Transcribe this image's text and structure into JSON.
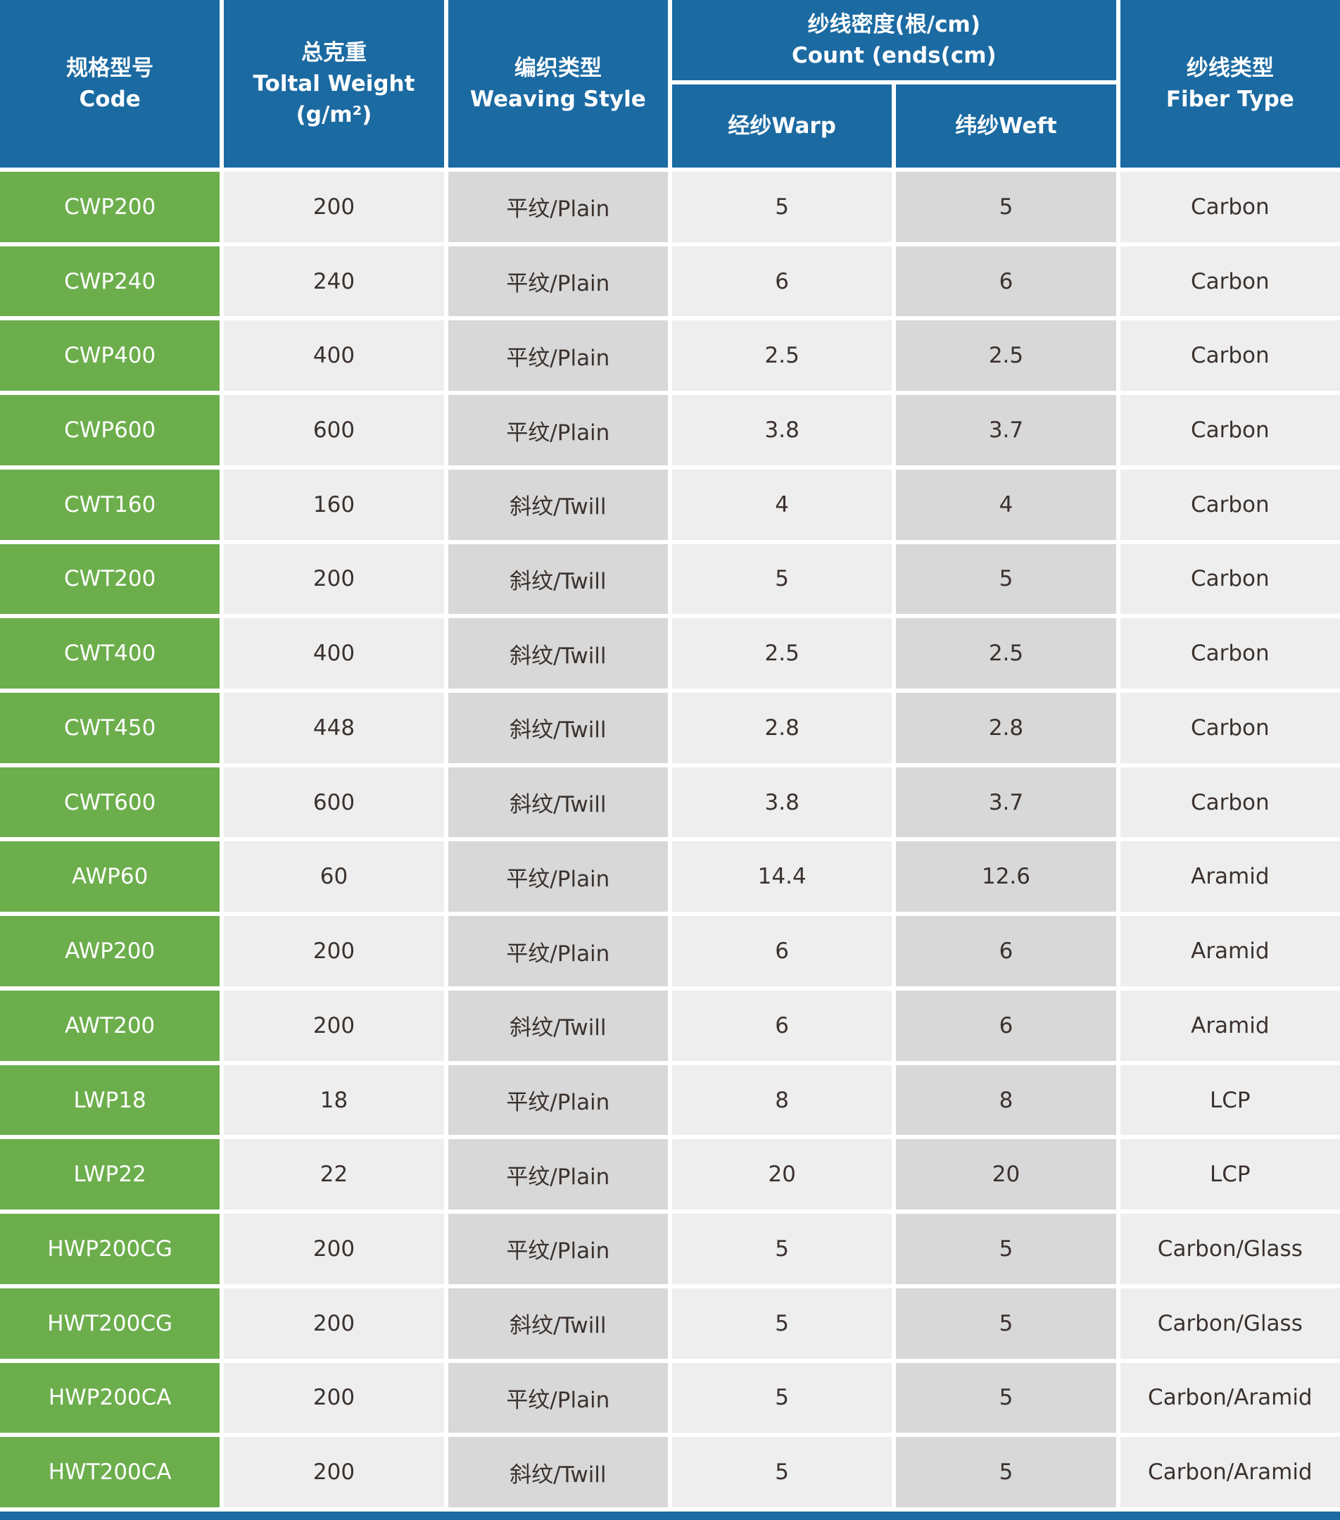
{
  "header": {
    "code": {
      "zh": "规格型号",
      "en": "Code"
    },
    "weight": {
      "zh": "总克重",
      "en": "Toltal Weight",
      "unit": "(g/m²)"
    },
    "weaving": {
      "zh": "编织类型",
      "en": "Weaving Style"
    },
    "count": {
      "zh": "纱线密度(根/cm)",
      "en": "Count (ends(cm)"
    },
    "warp": {
      "label": "经纱Warp"
    },
    "weft": {
      "label": "纬纱Weft"
    },
    "fiber": {
      "zh": "纱线类型",
      "en": "Fiber Type"
    }
  },
  "rows": [
    {
      "code": "CWP200",
      "weight": "200",
      "weaving": "平纹/Plain",
      "warp": "5",
      "weft": "5",
      "fiber": "Carbon"
    },
    {
      "code": "CWP240",
      "weight": "240",
      "weaving": "平纹/Plain",
      "warp": "6",
      "weft": "6",
      "fiber": "Carbon"
    },
    {
      "code": "CWP400",
      "weight": "400",
      "weaving": "平纹/Plain",
      "warp": "2.5",
      "weft": "2.5",
      "fiber": "Carbon"
    },
    {
      "code": "CWP600",
      "weight": "600",
      "weaving": "平纹/Plain",
      "warp": "3.8",
      "weft": "3.7",
      "fiber": "Carbon"
    },
    {
      "code": "CWT160",
      "weight": "160",
      "weaving": "斜纹/Twill",
      "warp": "4",
      "weft": "4",
      "fiber": "Carbon"
    },
    {
      "code": "CWT200",
      "weight": "200",
      "weaving": "斜纹/Twill",
      "warp": "5",
      "weft": "5",
      "fiber": "Carbon"
    },
    {
      "code": "CWT400",
      "weight": "400",
      "weaving": "斜纹/Twill",
      "warp": "2.5",
      "weft": "2.5",
      "fiber": "Carbon"
    },
    {
      "code": "CWT450",
      "weight": "448",
      "weaving": "斜纹/Twill",
      "warp": "2.8",
      "weft": "2.8",
      "fiber": "Carbon"
    },
    {
      "code": "CWT600",
      "weight": "600",
      "weaving": "斜纹/Twill",
      "warp": "3.8",
      "weft": "3.7",
      "fiber": "Carbon"
    },
    {
      "code": "AWP60",
      "weight": "60",
      "weaving": "平纹/Plain",
      "warp": "14.4",
      "weft": "12.6",
      "fiber": "Aramid"
    },
    {
      "code": "AWP200",
      "weight": "200",
      "weaving": "平纹/Plain",
      "warp": "6",
      "weft": "6",
      "fiber": "Aramid"
    },
    {
      "code": "AWT200",
      "weight": "200",
      "weaving": "斜纹/Twill",
      "warp": "6",
      "weft": "6",
      "fiber": "Aramid"
    },
    {
      "code": "LWP18",
      "weight": "18",
      "weaving": "平纹/Plain",
      "warp": "8",
      "weft": "8",
      "fiber": "LCP"
    },
    {
      "code": "LWP22",
      "weight": "22",
      "weaving": "平纹/Plain",
      "warp": "20",
      "weft": "20",
      "fiber": "LCP"
    },
    {
      "code": "HWP200CG",
      "weight": "200",
      "weaving": "平纹/Plain",
      "warp": "5",
      "weft": "5",
      "fiber": "Carbon/Glass"
    },
    {
      "code": "HWT200CG",
      "weight": "200",
      "weaving": "斜纹/Twill",
      "warp": "5",
      "weft": "5",
      "fiber": "Carbon/Glass"
    },
    {
      "code": "HWP200CA",
      "weight": "200",
      "weaving": "平纹/Plain",
      "warp": "5",
      "weft": "5",
      "fiber": "Carbon/Aramid"
    },
    {
      "code": "HWT200CA",
      "weight": "200",
      "weaving": "斜纹/Twill",
      "warp": "5",
      "weft": "5",
      "fiber": "Carbon/Aramid"
    }
  ],
  "colors": {
    "header_blue": "#1b6aa2",
    "row_green": "#6cae4c",
    "cell_light": "#eeeeee",
    "cell_dark": "#d8d8d8",
    "text_dark": "#3a322e",
    "border_white": "#ffffff"
  }
}
